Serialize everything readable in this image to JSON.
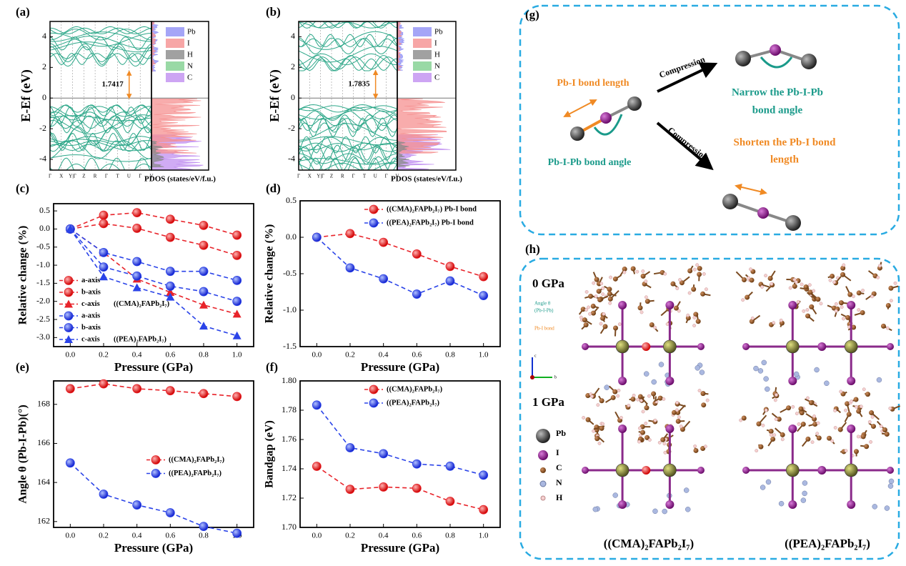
{
  "panel_labels": [
    "(a)",
    "(b)",
    "(c)",
    "(d)",
    "(e)",
    "(f)",
    "(g)",
    "(h)"
  ],
  "chart_data": [
    {
      "type": "band",
      "ylabel": "E-Ef (eV)",
      "xlabel": "PDOS (states/eV/f.u.)",
      "ylim": [
        -4.7,
        5
      ],
      "yticks": [
        -4,
        -2,
        0,
        2,
        4
      ],
      "kpoints": [
        "Γ",
        "X",
        "Y|Γ",
        "Z",
        "R",
        "Γ",
        "T",
        "U",
        "Γ",
        "V"
      ],
      "band_gap": 1.7417,
      "pdos_legend": [
        {
          "name": "Pb",
          "color": "#8f8ff5"
        },
        {
          "name": "I",
          "color": "#f59090"
        },
        {
          "name": "H",
          "color": "#8a8a8a"
        },
        {
          "name": "N",
          "color": "#7fd08f"
        },
        {
          "name": "C",
          "color": "#c08ff0"
        }
      ]
    },
    {
      "type": "band",
      "ylabel": "E-Ef (eV)",
      "xlabel": "PDOS (states/eV/f.u.)",
      "ylim": [
        -4.7,
        5
      ],
      "yticks": [
        -4,
        -2,
        0,
        2,
        4
      ],
      "kpoints": [
        "Γ",
        "X",
        "Y|Γ",
        "Z",
        "R",
        "Γ",
        "T",
        "U",
        "Γ",
        "V"
      ],
      "band_gap": 1.7835,
      "pdos_legend": [
        {
          "name": "Pb",
          "color": "#8f8ff5"
        },
        {
          "name": "I",
          "color": "#f59090"
        },
        {
          "name": "H",
          "color": "#8a8a8a"
        },
        {
          "name": "N",
          "color": "#7fd08f"
        },
        {
          "name": "C",
          "color": "#c08ff0"
        }
      ]
    },
    {
      "type": "line",
      "xlabel": "Pressure (GPa)",
      "ylabel": "Relative change (%)",
      "x": [
        0,
        0.2,
        0.4,
        0.6,
        0.8,
        1.0
      ],
      "xlim": [
        -0.1,
        1.1
      ],
      "ylim": [
        -3.25,
        0.7
      ],
      "xticks": [
        {
          "value": 0,
          "label": "0.0"
        },
        0.2,
        0.4,
        0.6,
        0.8,
        {
          "value": 1,
          "label": "1.0"
        }
      ],
      "yticks": [
        0.5,
        {
          "value": 0,
          "label": "0.0"
        },
        -0.5,
        {
          "value": -1,
          "label": "-1.0"
        },
        -1.5,
        {
          "value": -2,
          "label": "-2.0"
        },
        -2.5,
        {
          "value": -3,
          "label": "-3.0"
        }
      ],
      "legend": "lower left",
      "legend_groups": [
        "((CMA)₂FAPb₂I₇)",
        "((PEA)₂FAPb₂I₇)"
      ],
      "series": [
        {
          "name": "a-axis",
          "color": "#e8232a",
          "marker": "circle",
          "values": [
            0,
            0.38,
            0.45,
            0.27,
            0.1,
            -0.17
          ]
        },
        {
          "name": "b-axis",
          "color": "#e8232a",
          "marker": "circle",
          "values": [
            0,
            0.15,
            0.02,
            -0.23,
            -0.45,
            -0.73
          ]
        },
        {
          "name": "c-axis",
          "color": "#e8232a",
          "marker": "triangle",
          "values": [
            0,
            -0.65,
            -1.38,
            -1.75,
            -2.1,
            -2.35
          ]
        },
        {
          "name": "a-axis",
          "color": "#2a43e8",
          "marker": "circle",
          "values": [
            0,
            -0.65,
            -0.9,
            -1.17,
            -1.17,
            -1.42
          ]
        },
        {
          "name": "b-axis",
          "color": "#2a43e8",
          "marker": "circle",
          "values": [
            0,
            -1.05,
            -1.3,
            -1.58,
            -1.73,
            -2.0
          ]
        },
        {
          "name": "c-axis",
          "color": "#2a43e8",
          "marker": "triangle",
          "values": [
            0,
            -1.32,
            -1.62,
            -1.88,
            -2.68,
            -2.95
          ]
        }
      ]
    },
    {
      "type": "line",
      "xlabel": "Pressure (GPa)",
      "ylabel": "Relative change (%)",
      "x": [
        0,
        0.2,
        0.4,
        0.6,
        0.8,
        1.0
      ],
      "xlim": [
        -0.1,
        1.1
      ],
      "ylim": [
        -1.5,
        0.5
      ],
      "xticks": [
        {
          "value": 0,
          "label": "0.0"
        },
        0.2,
        0.4,
        0.6,
        0.8,
        {
          "value": 1,
          "label": "1.0"
        }
      ],
      "yticks": [
        0.5,
        {
          "value": 0,
          "label": "0.0"
        },
        -0.5,
        {
          "value": -1,
          "label": "-1.0"
        },
        -1.5
      ],
      "legend": "upper right",
      "series": [
        {
          "name": "((CMA)₂FAPb₂I₇) Pb-I bond",
          "color": "#e8232a",
          "marker": "circle",
          "values": [
            0,
            0.05,
            -0.07,
            -0.23,
            -0.4,
            -0.54
          ]
        },
        {
          "name": "((PEA)₂FAPb₂I₇) Pb-I bond",
          "color": "#2a43e8",
          "marker": "circle",
          "values": [
            0,
            -0.42,
            -0.57,
            -0.78,
            -0.6,
            -0.8
          ]
        }
      ]
    },
    {
      "type": "line",
      "xlabel": "Pressure (GPa)",
      "ylabel": "Angle θ (Pb-I-Pb)(°)",
      "x": [
        0,
        0.2,
        0.4,
        0.6,
        0.8,
        1.0
      ],
      "xlim": [
        -0.1,
        1.1
      ],
      "ylim": [
        161.7,
        169.2
      ],
      "xticks": [
        {
          "value": 0,
          "label": "0.0"
        },
        0.2,
        0.4,
        0.6,
        0.8,
        {
          "value": 1,
          "label": "1.0"
        }
      ],
      "yticks": [
        162,
        164,
        166,
        168
      ],
      "legend": "center right",
      "series": [
        {
          "name": "((CMA)₂FAPb₂I₇)",
          "color": "#e8232a",
          "marker": "circle",
          "values": [
            168.8,
            169.05,
            168.8,
            168.7,
            168.55,
            168.4
          ]
        },
        {
          "name": "((PEA)₂FAPb₂I₇)",
          "color": "#2a43e8",
          "marker": "circle",
          "values": [
            165,
            163.4,
            162.85,
            162.45,
            161.75,
            161.4
          ]
        }
      ]
    },
    {
      "type": "line",
      "xlabel": "Pressure (GPa)",
      "ylabel": "Bandgap (eV)",
      "x": [
        0,
        0.2,
        0.4,
        0.6,
        0.8,
        1.0
      ],
      "xlim": [
        -0.1,
        1.1
      ],
      "ylim": [
        1.7,
        1.8
      ],
      "xticks": [
        {
          "value": 0,
          "label": "0.0"
        },
        0.2,
        0.4,
        0.6,
        0.8,
        {
          "value": 1,
          "label": "1.0"
        }
      ],
      "yticks": [
        {
          "value": 1.7,
          "label": "1.70"
        },
        1.72,
        1.74,
        1.76,
        1.78,
        {
          "value": 1.8,
          "label": "1.80"
        }
      ],
      "legend": "upper right",
      "series": [
        {
          "name": "((CMA)₂FAPb₂I₇)",
          "color": "#e8232a",
          "marker": "circle",
          "values": [
            1.7417,
            1.726,
            1.7276,
            1.7267,
            1.7178,
            1.7121
          ]
        },
        {
          "name": "((PEA)₂FAPb₂I₇)",
          "color": "#2a43e8",
          "marker": "circle",
          "values": [
            1.7835,
            1.7544,
            1.7503,
            1.7433,
            1.7418,
            1.7357
          ]
        }
      ]
    }
  ],
  "diagram": {
    "bond_length": "Pb-I bond length",
    "bond_angle": "Pb-I-Pb bond angle",
    "compression_1": "Compression",
    "compression_2": "Compression",
    "narrow": [
      "Narrow the Pb-I-Pb",
      "bond angle"
    ],
    "shorten": [
      "Shorten the Pb-I bond",
      "length"
    ]
  },
  "structure": {
    "pressures": [
      "0 GPa",
      "1 GPa"
    ],
    "angle_note": [
      "Angle θ",
      "(Pb-I-Pb)"
    ],
    "bond_note": "Pb-I bond",
    "axes": [
      "c",
      "b"
    ],
    "atoms": [
      "Pb",
      "I",
      "C",
      "N",
      "H"
    ],
    "compounds": [
      "((CMA)₂FAPb₂I₇)",
      "((PEA)₂FAPb₂I₇)"
    ]
  }
}
